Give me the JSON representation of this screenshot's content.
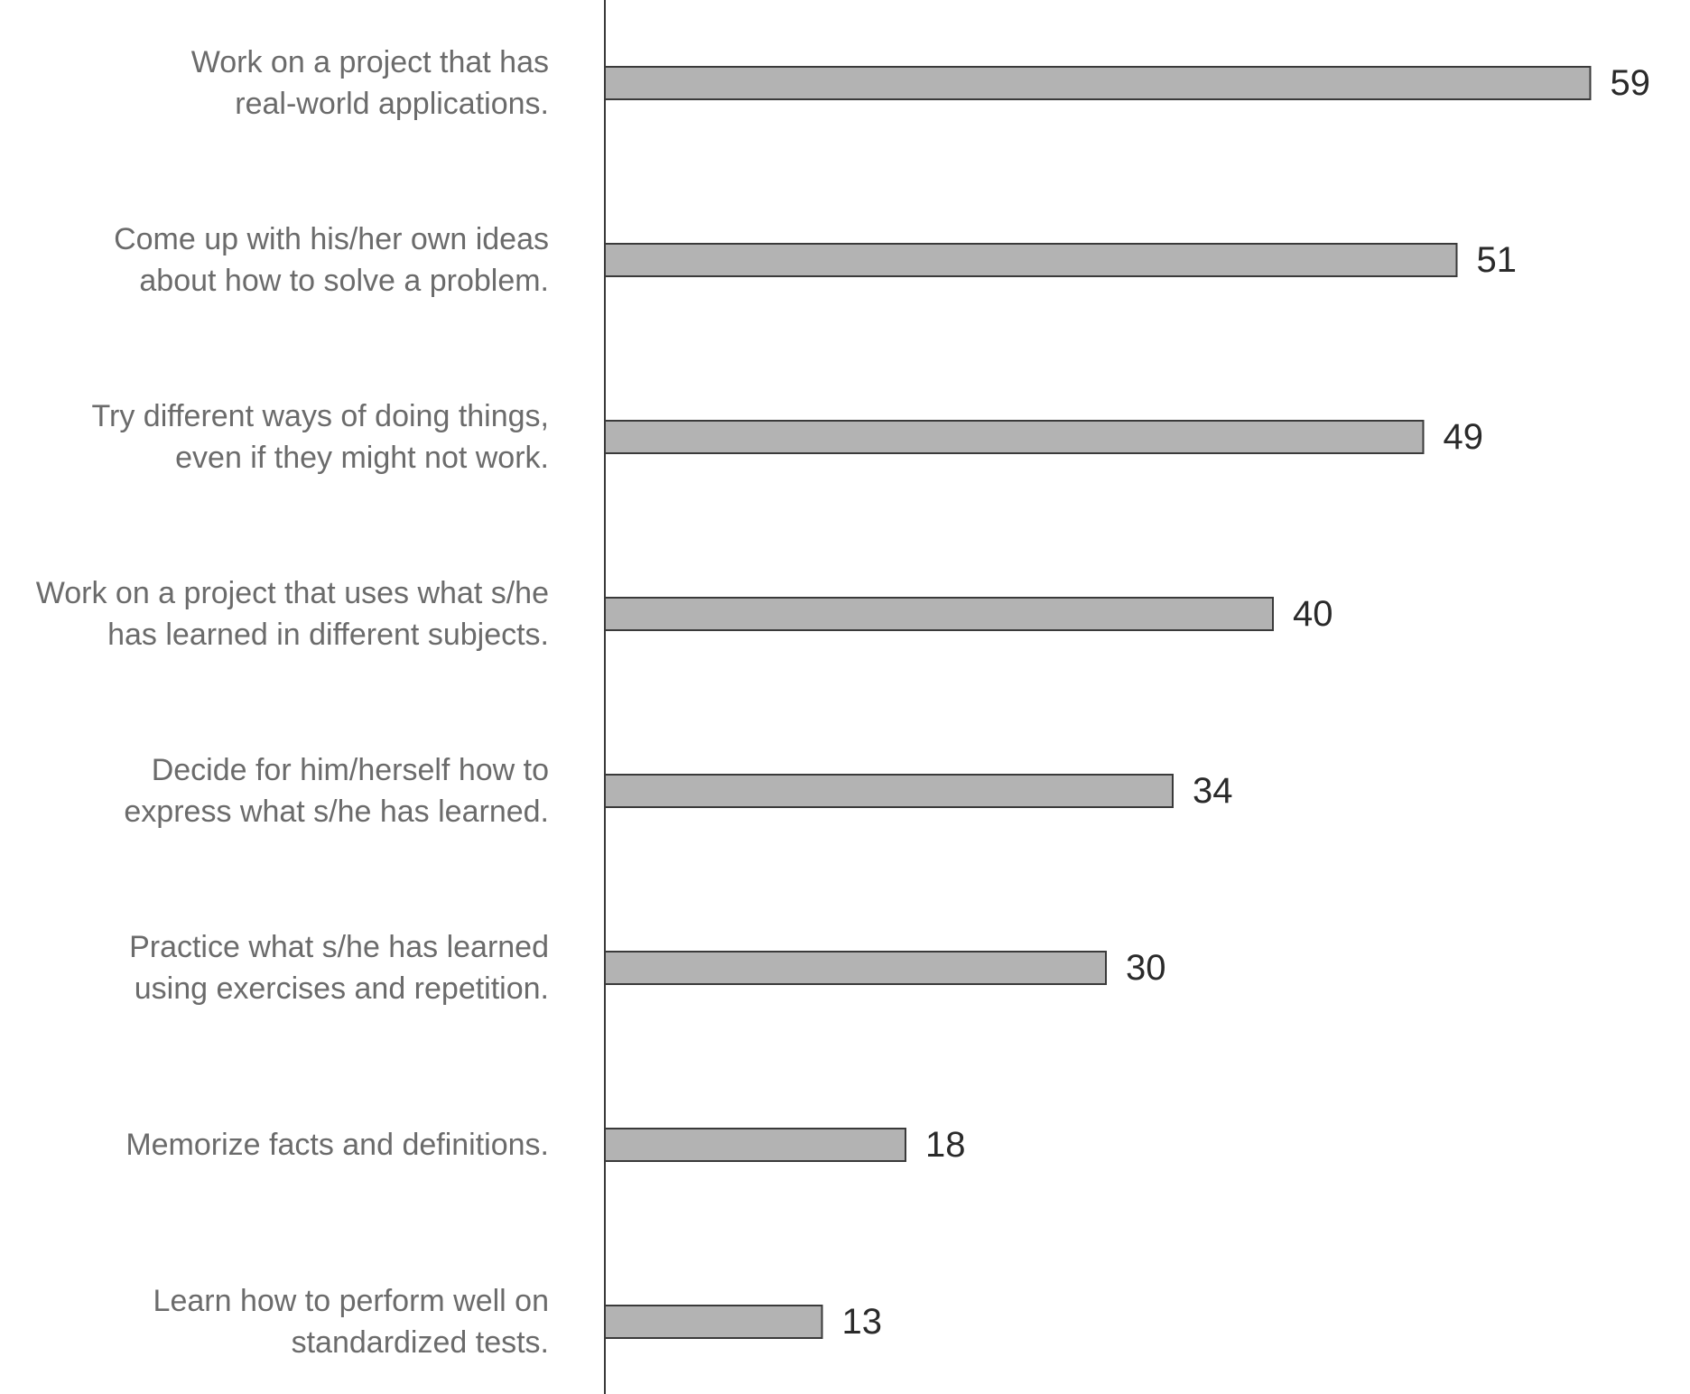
{
  "chart_data": {
    "type": "bar",
    "orientation": "horizontal",
    "title": "",
    "xlabel": "",
    "ylabel": "",
    "xlim": [
      0,
      60
    ],
    "grid": false,
    "legend": "none",
    "bar_color": "#b3b3b3",
    "bar_outline_color": "#3a3a3a",
    "label_color": "#6b6b6b",
    "value_label_color": "#2a2a2a",
    "categories": [
      [
        "Work on a project that has",
        "real-world applications."
      ],
      [
        "Come up with his/her own ideas",
        "about how to solve a problem."
      ],
      [
        "Try different ways of doing things,",
        "even if they might not work."
      ],
      [
        "Work on a project that uses what s/he",
        "has learned in different subjects."
      ],
      [
        "Decide for him/herself how to",
        "express what s/he has learned."
      ],
      [
        "Practice what s/he has learned",
        "using exercises and repetition."
      ],
      [
        "Memorize facts and definitions."
      ],
      [
        "Learn how to perform well on",
        "standardized tests."
      ]
    ],
    "values": [
      59,
      51,
      49,
      40,
      34,
      30,
      18,
      13
    ]
  }
}
